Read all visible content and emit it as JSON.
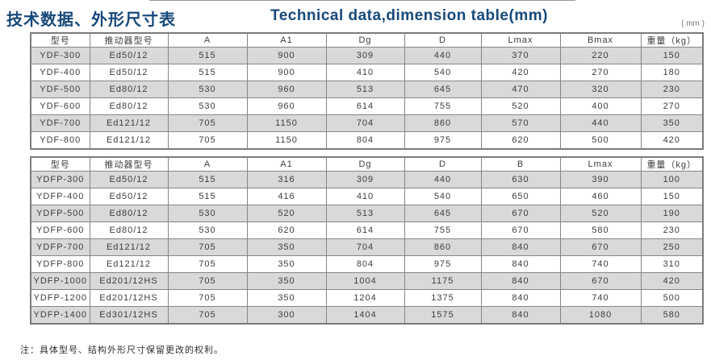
{
  "header": {
    "title_zh": "技术数据、外形尺寸表",
    "title_en": "Technical data,dimension table(mm)",
    "unit_label": "( mm )"
  },
  "tables": [
    {
      "name": "YDF-series-dimensions",
      "columns": [
        "型号",
        "推动器型号",
        "A",
        "A1",
        "Dg",
        "D",
        "Lmax",
        "Bmax",
        "重量（kg）"
      ],
      "rows": [
        [
          "YDF-300",
          "Ed50/12",
          "515",
          "900",
          "309",
          "440",
          "370",
          "220",
          "150"
        ],
        [
          "YDF-400",
          "Ed50/12",
          "515",
          "900",
          "410",
          "540",
          "420",
          "270",
          "180"
        ],
        [
          "YDF-500",
          "Ed80/12",
          "530",
          "960",
          "513",
          "645",
          "470",
          "320",
          "230"
        ],
        [
          "YDF-600",
          "Ed80/12",
          "530",
          "960",
          "614",
          "755",
          "520",
          "400",
          "270"
        ],
        [
          "YDF-700",
          "Ed121/12",
          "705",
          "1150",
          "704",
          "860",
          "570",
          "440",
          "350"
        ],
        [
          "YDF-800",
          "Ed121/12",
          "705",
          "1150",
          "804",
          "975",
          "620",
          "500",
          "420"
        ]
      ]
    },
    {
      "name": "YDFP-series-dimensions",
      "columns": [
        "型号",
        "推动器型号",
        "A",
        "A1",
        "Dg",
        "D",
        "B",
        "Lmax",
        "重量（kg）"
      ],
      "rows": [
        [
          "YDFP-300",
          "Ed50/12",
          "515",
          "316",
          "309",
          "440",
          "630",
          "390",
          "100"
        ],
        [
          "YDFP-400",
          "Ed50/12",
          "515",
          "416",
          "410",
          "540",
          "650",
          "460",
          "150"
        ],
        [
          "YDFP-500",
          "Ed80/12",
          "530",
          "520",
          "513",
          "645",
          "670",
          "520",
          "190"
        ],
        [
          "YDFP-600",
          "Ed80/12",
          "530",
          "620",
          "614",
          "755",
          "670",
          "580",
          "230"
        ],
        [
          "YDFP-700",
          "Ed121/12",
          "705",
          "350",
          "704",
          "860",
          "840",
          "670",
          "250"
        ],
        [
          "YDFP-800",
          "Ed121/12",
          "705",
          "350",
          "804",
          "975",
          "840",
          "740",
          "310"
        ],
        [
          "YDFP-1000",
          "Ed201/12HS",
          "705",
          "350",
          "1004",
          "1175",
          "840",
          "670",
          "420"
        ],
        [
          "YDFP-1200",
          "Ed201/12HS",
          "705",
          "350",
          "1204",
          "1375",
          "840",
          "740",
          "500"
        ],
        [
          "YDFP-1400",
          "Ed301/12HS",
          "705",
          "300",
          "1404",
          "1575",
          "840",
          "1080",
          "580"
        ]
      ]
    }
  ],
  "footer": {
    "note": "注：具体型号、结构外形尺寸保留更改的权利。"
  },
  "colors": {
    "title": "#17497b",
    "border": "#868686",
    "row_shade": "#d9d9d9",
    "text": "#3d3d3d"
  }
}
